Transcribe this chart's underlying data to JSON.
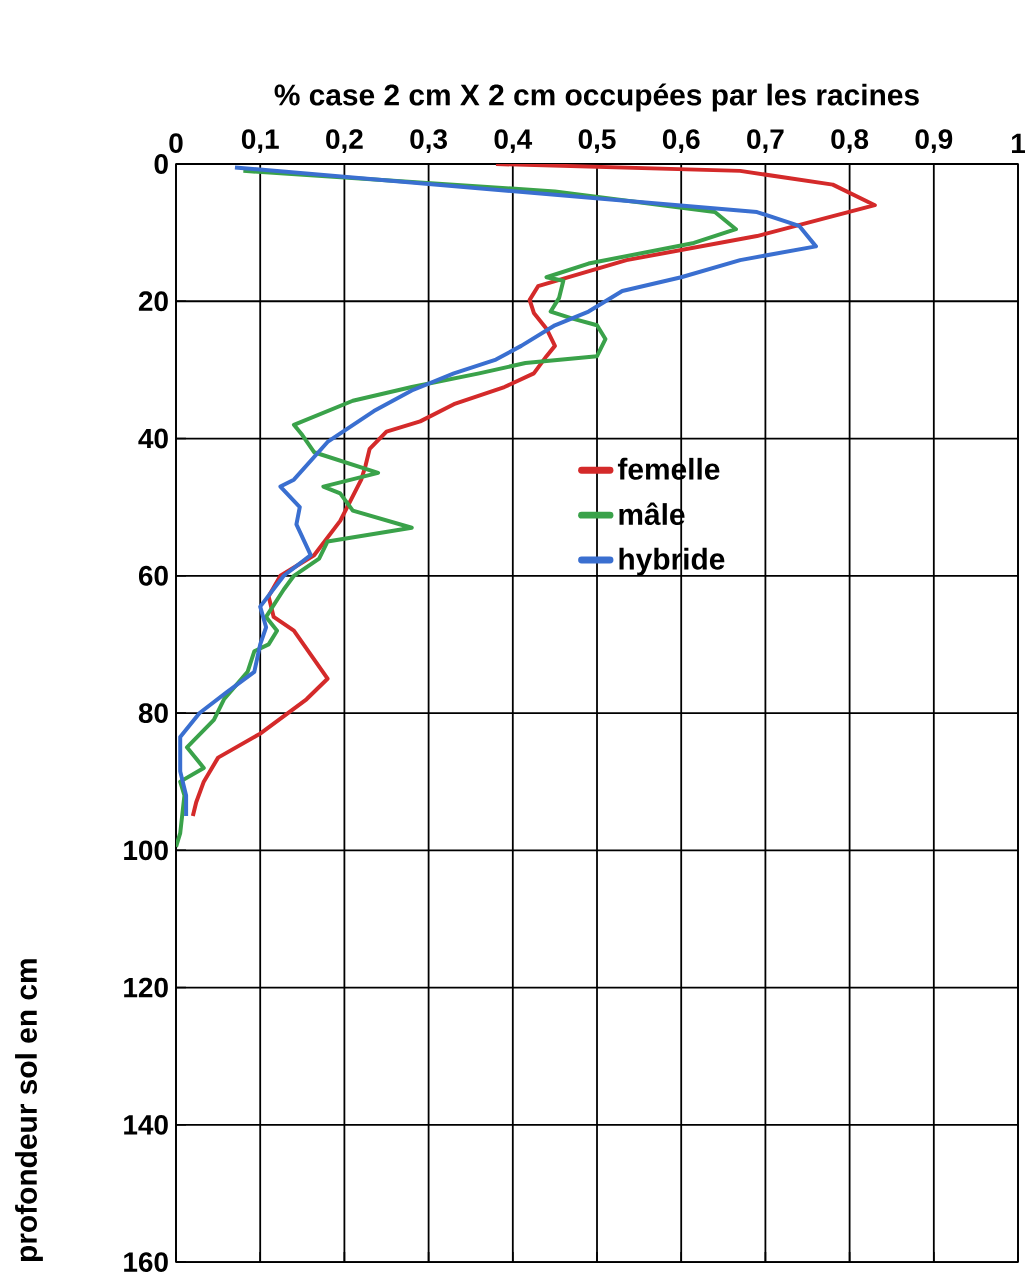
{
  "chart_data": {
    "type": "line",
    "xlabel": "% case 2 cm X 2 cm occupées par les racines",
    "ylabel": "profondeur sol en cm",
    "xlim": [
      0,
      1
    ],
    "ylim": [
      160,
      0
    ],
    "xticks": [
      0,
      {
        "value": 0.1,
        "label": "0,1"
      },
      {
        "value": 0.2,
        "label": "0,2"
      },
      {
        "value": 0.3,
        "label": "0,3"
      },
      {
        "value": 0.4,
        "label": "0,4"
      },
      {
        "value": 0.5,
        "label": "0,5"
      },
      {
        "value": 0.6,
        "label": "0,6"
      },
      {
        "value": 0.7,
        "label": "0,7"
      },
      {
        "value": 0.8,
        "label": "0,8"
      },
      {
        "value": 0.9,
        "label": "0,9"
      },
      1
    ],
    "yticks": [
      0,
      20,
      40,
      60,
      80,
      100,
      120,
      140,
      160
    ],
    "grid": true,
    "legend": "center",
    "series": [
      {
        "name": "femelle",
        "color": "#d42a2a",
        "x": [
          0.38,
          0.67,
          0.78,
          0.83,
          0.69,
          0.535,
          0.43,
          0.42,
          0.425,
          0.44,
          0.45,
          0.44,
          0.425,
          0.39,
          0.33,
          0.29,
          0.25,
          0.23,
          0.225,
          0.22,
          0.195,
          0.164,
          0.124,
          0.11,
          0.116,
          0.14,
          0.16,
          0.18,
          0.155,
          0.1,
          0.05,
          0.033,
          0.024,
          0.02
        ],
        "values": [
          0,
          1,
          3,
          6,
          10.5,
          14,
          17.8,
          19.8,
          21.7,
          24,
          26.5,
          28,
          30.5,
          32.5,
          35,
          37.5,
          39,
          41.5,
          44,
          46,
          52,
          57,
          60,
          63,
          66,
          68,
          71.5,
          75,
          78,
          83,
          86.5,
          90,
          93,
          95
        ]
      },
      {
        "name": "mâle",
        "color": "#3aa24a",
        "x": [
          0.08,
          0.45,
          0.64,
          0.665,
          0.615,
          0.49,
          0.44,
          0.46,
          0.455,
          0.445,
          0.47,
          0.5,
          0.51,
          0.5,
          0.415,
          0.36,
          0.28,
          0.21,
          0.14,
          0.15,
          0.164,
          0.24,
          0.175,
          0.195,
          0.21,
          0.28,
          0.18,
          0.17,
          0.14,
          0.128,
          0.107,
          0.12,
          0.11,
          0.093,
          0.085,
          0.057,
          0.045,
          0.013,
          0.033,
          0.005,
          0.01,
          0.005,
          0
        ],
        "values": [
          1,
          4,
          7,
          9.5,
          11.5,
          14.5,
          16.5,
          17,
          19.5,
          21.5,
          22.5,
          23.5,
          25.5,
          28,
          29,
          30.5,
          32.5,
          34.5,
          38,
          39.5,
          42,
          45,
          47,
          48,
          50.5,
          53,
          55,
          57.5,
          60,
          62,
          66,
          68,
          70,
          71,
          74,
          78,
          81,
          85,
          88,
          90,
          92,
          97.5,
          99.5
        ]
      },
      {
        "name": "hybride",
        "color": "#3a6fd0",
        "x": [
          0.07,
          0.69,
          0.74,
          0.76,
          0.67,
          0.6,
          0.53,
          0.49,
          0.45,
          0.41,
          0.38,
          0.33,
          0.28,
          0.235,
          0.18,
          0.14,
          0.124,
          0.147,
          0.143,
          0.16,
          0.128,
          0.1,
          0.107,
          0.1,
          0.093,
          0.06,
          0.028,
          0.005,
          0.005,
          0.012,
          0.012
        ],
        "values": [
          0.5,
          7,
          9,
          12,
          14,
          16.5,
          18.5,
          21.5,
          23.5,
          26.5,
          28.5,
          30.5,
          33,
          36,
          40.5,
          46,
          47,
          50,
          52.5,
          57,
          60,
          64.5,
          67.5,
          70,
          74,
          77,
          80,
          83.5,
          88.5,
          92,
          95
        ]
      }
    ]
  }
}
